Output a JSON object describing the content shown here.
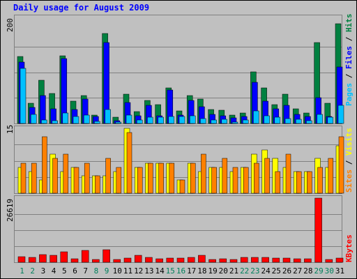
{
  "chart_data": [
    {
      "type": "bar",
      "title": "Daily usage for August 2009",
      "ymax_label": "200",
      "legend_labels": [
        "Pages",
        "Files",
        "Hits"
      ],
      "ylim": [
        0,
        200
      ],
      "categories": [
        "1",
        "2",
        "3",
        "4",
        "5",
        "6",
        "7",
        "8",
        "9",
        "10",
        "11",
        "12",
        "13",
        "14",
        "15",
        "16",
        "17",
        "18",
        "19",
        "20",
        "21",
        "22",
        "23",
        "24",
        "25",
        "26",
        "27",
        "28",
        "29",
        "30",
        "31"
      ],
      "series": [
        {
          "name": "Hits",
          "color": "#008040",
          "values": [
            130,
            40,
            85,
            58,
            132,
            43,
            55,
            17,
            176,
            12,
            57,
            23,
            45,
            37,
            69,
            24,
            54,
            48,
            27,
            26,
            17,
            20,
            101,
            70,
            37,
            57,
            29,
            21,
            158,
            40,
            195
          ]
        },
        {
          "name": "Files",
          "color": "#0000ff",
          "values": [
            120,
            31,
            54,
            28,
            126,
            27,
            47,
            14,
            158,
            5,
            41,
            15,
            35,
            15,
            65,
            17,
            45,
            33,
            18,
            15,
            11,
            13,
            80,
            43,
            29,
            36,
            18,
            13,
            50,
            14,
            110
          ]
        },
        {
          "name": "Pages",
          "color": "#00c0ff",
          "values": [
            108,
            18,
            7,
            5,
            20,
            14,
            17,
            4,
            27,
            3,
            17,
            7,
            12,
            12,
            13,
            13,
            15,
            10,
            7,
            8,
            3,
            7,
            25,
            15,
            12,
            10,
            8,
            5,
            18,
            12,
            35
          ]
        }
      ]
    },
    {
      "type": "bar",
      "ymax_label": "15",
      "legend_labels": [
        "Sites",
        "Visits"
      ],
      "ylim": [
        0,
        15
      ],
      "categories": [
        "1",
        "2",
        "3",
        "4",
        "5",
        "6",
        "7",
        "8",
        "9",
        "10",
        "11",
        "12",
        "13",
        "14",
        "15",
        "16",
        "17",
        "18",
        "19",
        "20",
        "21",
        "22",
        "23",
        "24",
        "25",
        "26",
        "27",
        "28",
        "29",
        "30",
        "31"
      ],
      "series": [
        {
          "name": "Visits",
          "color": "#ffff00",
          "values": [
            6,
            5,
            3,
            9,
            5,
            6,
            4,
            4,
            4,
            5,
            15,
            6,
            7,
            7,
            7,
            3,
            7,
            5,
            6,
            6,
            5,
            6,
            9,
            10,
            8,
            6,
            5,
            5,
            8,
            6,
            11
          ]
        },
        {
          "name": "Sites",
          "color": "#ff8000",
          "values": [
            7,
            7,
            13,
            8,
            9,
            6,
            7,
            4,
            8,
            6,
            14,
            6,
            7,
            7,
            7,
            3,
            7,
            9,
            6,
            8,
            6,
            6,
            7,
            8,
            5,
            9,
            5,
            5,
            6,
            8,
            13
          ]
        }
      ]
    },
    {
      "type": "bar",
      "ymax_label": "26619",
      "legend_labels": [
        "KBytes"
      ],
      "ylim": [
        0,
        26619
      ],
      "categories": [
        "1",
        "2",
        "3",
        "4",
        "5",
        "6",
        "7",
        "8",
        "9",
        "10",
        "11",
        "12",
        "13",
        "14",
        "15",
        "16",
        "17",
        "18",
        "19",
        "20",
        "21",
        "22",
        "23",
        "24",
        "25",
        "26",
        "27",
        "28",
        "29",
        "30",
        "31"
      ],
      "series": [
        {
          "name": "KBytes",
          "color": "#ff0000",
          "values": [
            2400,
            2100,
            3200,
            2800,
            4300,
            1500,
            5000,
            1300,
            5300,
            1200,
            1600,
            2800,
            2000,
            1500,
            1600,
            1600,
            2100,
            2900,
            1300,
            1400,
            1300,
            2100,
            2000,
            2000,
            1600,
            1600,
            1400,
            1400,
            26619,
            1300,
            1600
          ]
        }
      ]
    }
  ],
  "weekend_days": [
    1,
    2,
    8,
    9,
    15,
    16,
    22,
    23,
    29,
    30
  ],
  "legend_colors": {
    "Pages": "#00c0ff",
    "Files": "#0000ff",
    "Hits": "#008040",
    "Sites": "#ff8000",
    "Visits": "#ffff00",
    "KBytes": "#ff0000"
  }
}
